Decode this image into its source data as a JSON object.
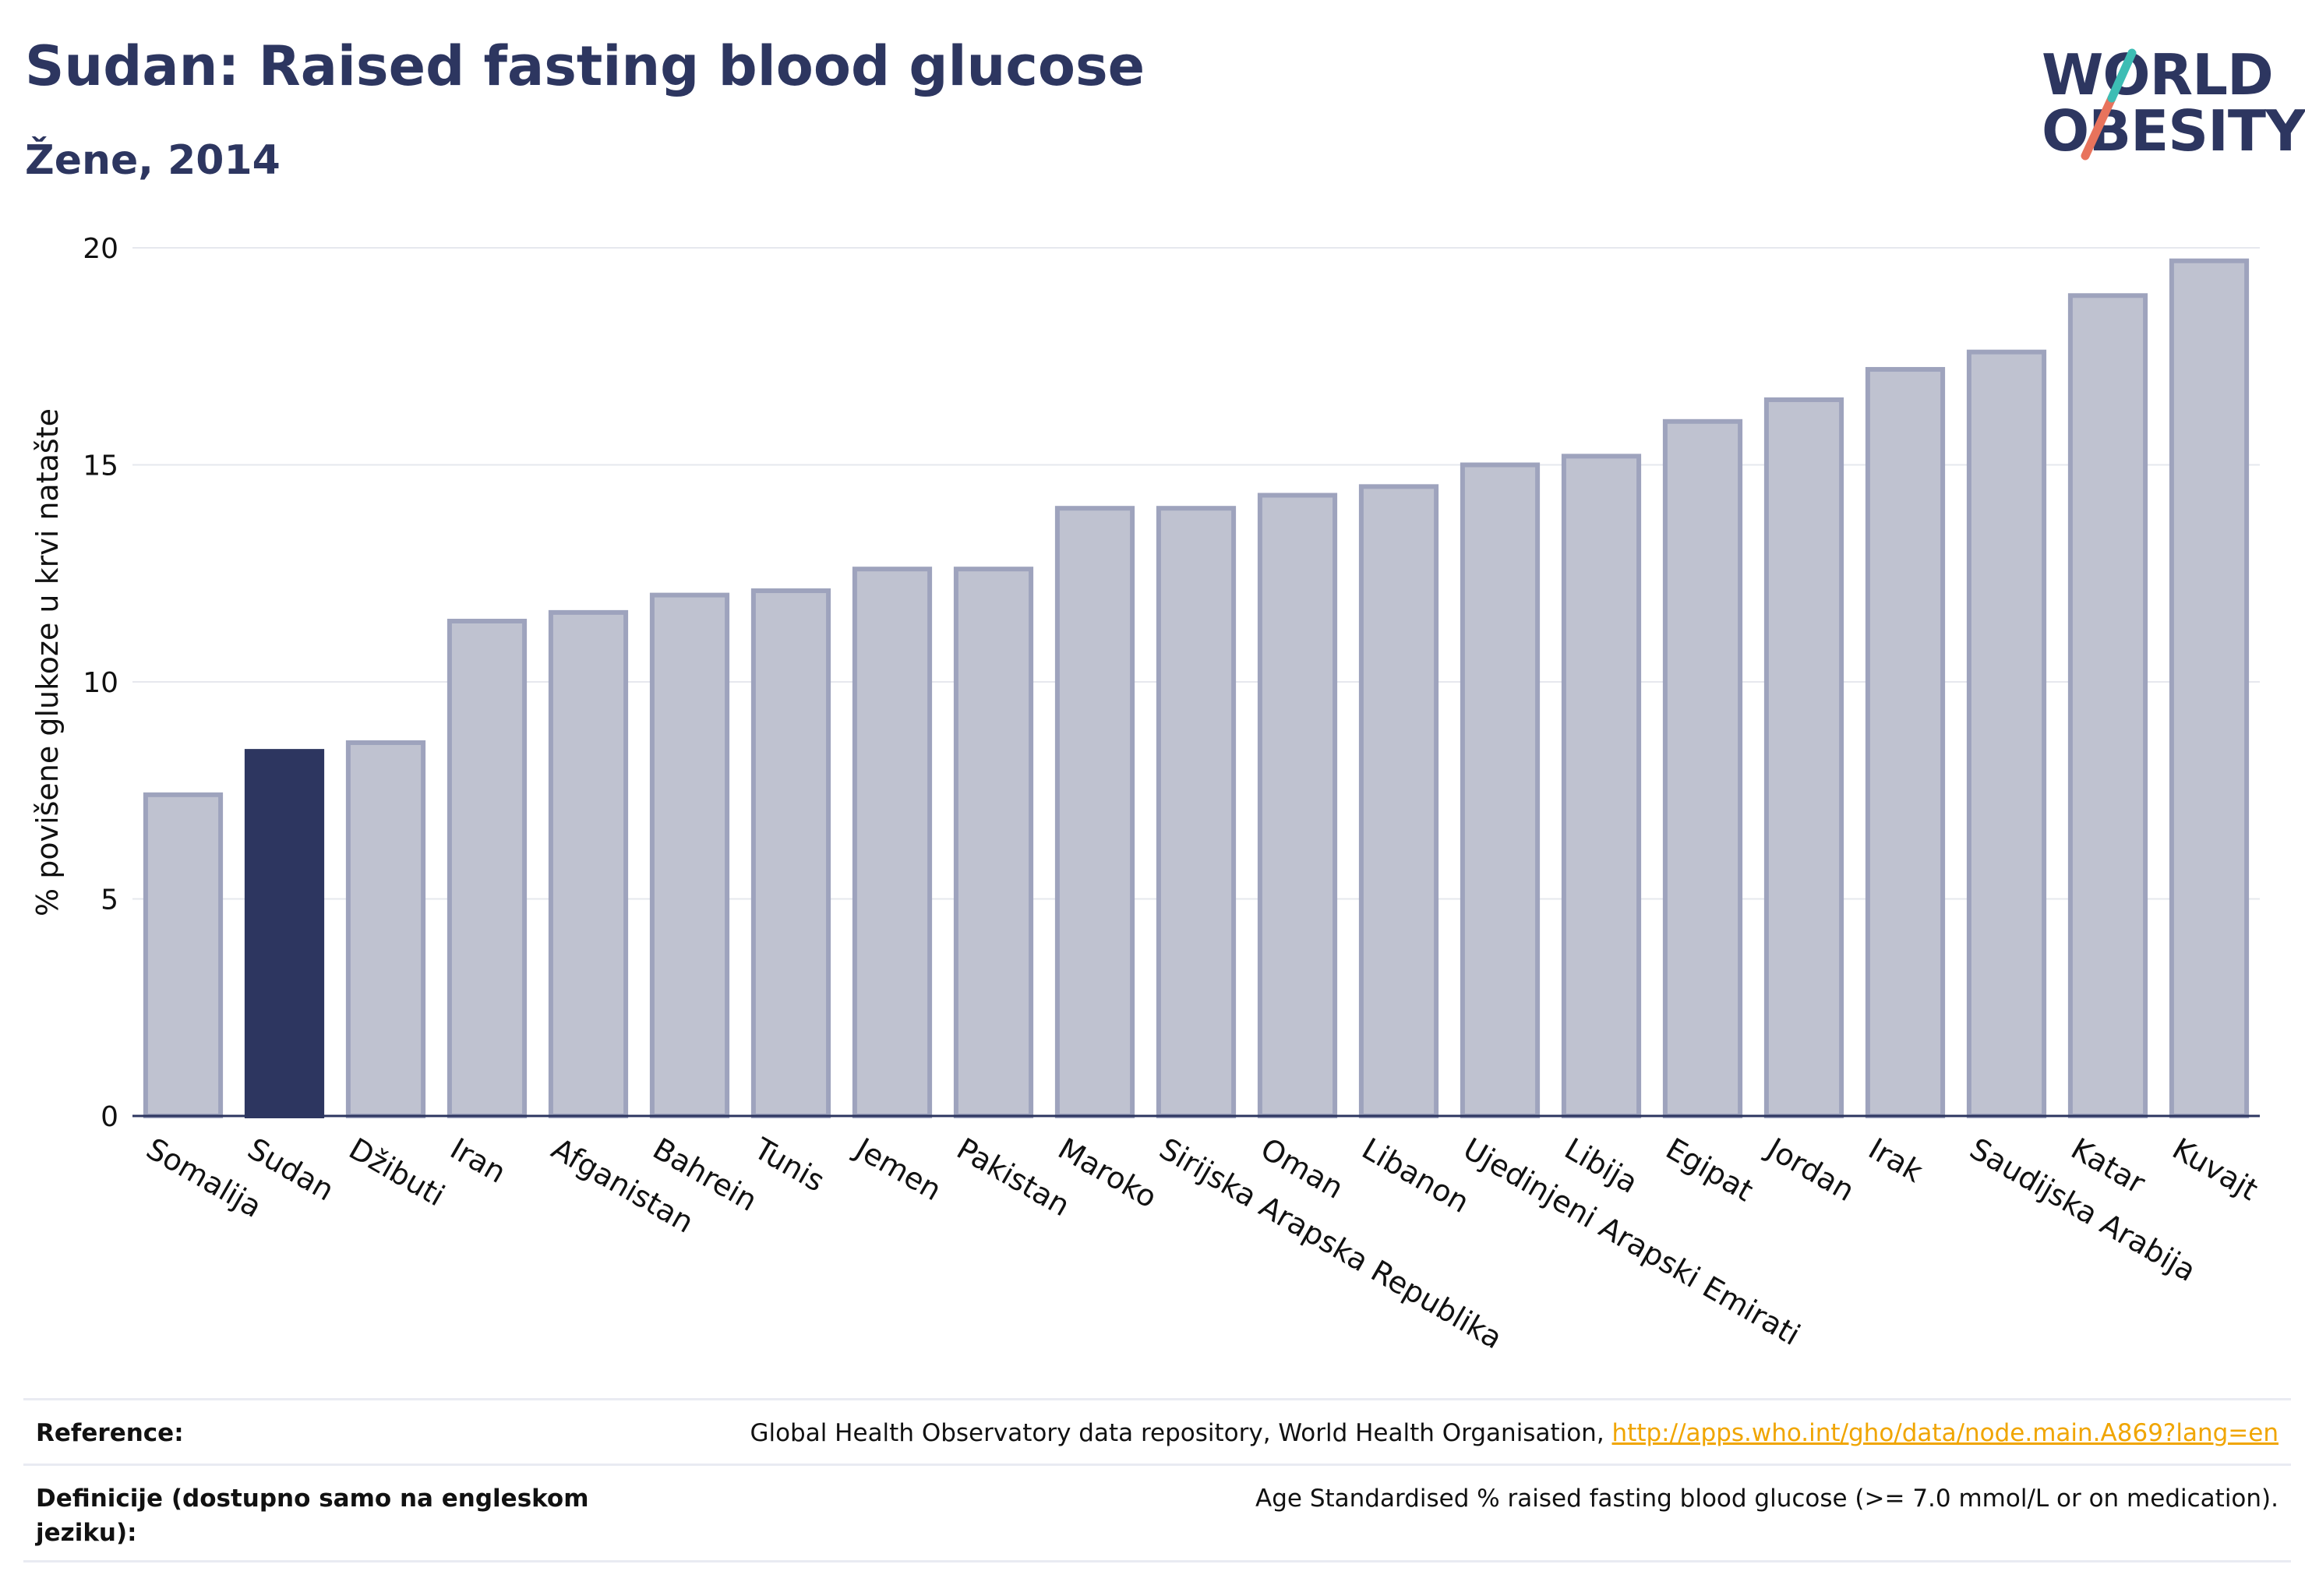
{
  "header": {
    "title": "Sudan: Raised fasting blood glucose",
    "subtitle": "Žene, 2014",
    "logo_line1": "WORLD",
    "logo_line2": "OBESITY"
  },
  "colors": {
    "highlight": "#2d3660",
    "bar_fill": "#bfc2d0",
    "bar_stroke": "#9ea3bd",
    "grid": "#e6e8ee",
    "logo_teal": "#3dbdb4",
    "logo_coral": "#e8735c"
  },
  "chart_data": {
    "type": "bar",
    "title": "Sudan: Raised fasting blood glucose",
    "subtitle": "Žene, 2014",
    "ylabel": "% povišene glukoze u krvi natašte",
    "xlabel": "",
    "ylim": [
      0,
      20
    ],
    "yticks": [
      0,
      5,
      10,
      15,
      20
    ],
    "grid": true,
    "highlight": "Sudan",
    "categories": [
      "Somalija",
      "Sudan",
      "Džibuti",
      "Iran",
      "Afganistan",
      "Bahrein",
      "Tunis",
      "Jemen",
      "Pakistan",
      "Maroko",
      "Sirijska Arapska Republika",
      "Oman",
      "Libanon",
      "Ujedinjeni Arapski Emirati",
      "Libija",
      "Egipat",
      "Jordan",
      "Irak",
      "Saudijska Arabija",
      "Katar",
      "Kuvajt"
    ],
    "values": [
      7.4,
      8.4,
      8.6,
      11.4,
      11.6,
      12.0,
      12.1,
      12.6,
      12.6,
      14.0,
      14.0,
      14.3,
      14.5,
      15.0,
      15.2,
      16.0,
      16.5,
      17.2,
      17.6,
      18.9,
      19.7
    ]
  },
  "footer": {
    "reference_label": "Reference:",
    "reference_text": "Global Health Observatory data repository, World Health Organisation, ",
    "reference_link": "http://apps.who.int/gho/data/node.main.A869?lang=en",
    "definition_label": "Definicije (dostupno samo na engleskom jeziku):",
    "definition_text": "Age Standardised % raised fasting blood glucose (>= 7.0 mmol/L or on medication)."
  }
}
